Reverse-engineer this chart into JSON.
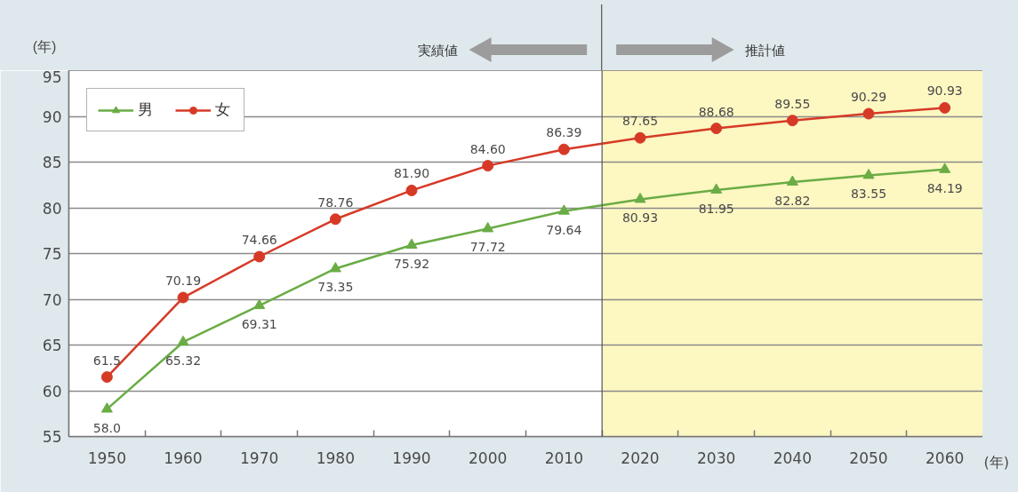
{
  "chart_data": {
    "type": "line",
    "xlabel": "(年)",
    "ylabel": "(年)",
    "x": [
      1950,
      1960,
      1970,
      1980,
      1990,
      2000,
      2010,
      2020,
      2030,
      2040,
      2050,
      2060
    ],
    "xlim": [
      1945,
      2065
    ],
    "xticks": [
      1950,
      {
        "value": 1955,
        "label": null
      },
      1960,
      {
        "value": 1965,
        "label": null
      },
      1970,
      {
        "value": 1975,
        "label": null
      },
      1980,
      {
        "value": 1985,
        "label": null
      },
      1990,
      {
        "value": 1995,
        "label": null
      },
      2000,
      {
        "value": 2005,
        "label": null
      },
      2010,
      {
        "value": 2015,
        "label": null
      },
      2020,
      {
        "value": 2025,
        "label": null
      },
      2030,
      {
        "value": 2035,
        "label": null
      },
      2040,
      {
        "value": 2045,
        "label": null
      },
      2050,
      {
        "value": 2055,
        "label": null
      },
      2060
    ],
    "ylim": [
      55,
      95
    ],
    "yticks": [
      55,
      60,
      65,
      70,
      75,
      80,
      85,
      90,
      95
    ],
    "grid": "y",
    "legend": "top left",
    "series": [
      {
        "name": "男",
        "color": "#6aac45",
        "marker": "triangle",
        "values": [
          58.0,
          65.32,
          69.31,
          73.35,
          75.92,
          77.72,
          79.64,
          80.93,
          81.95,
          82.82,
          83.55,
          84.19
        ],
        "value_labels": [
          "58.0",
          "65.32",
          "69.31",
          "73.35",
          "75.92",
          "77.72",
          "79.64",
          "80.93",
          "81.95",
          "82.82",
          "83.55",
          "84.19"
        ]
      },
      {
        "name": "女",
        "color": "#d63a26",
        "marker": "circle",
        "values": [
          61.5,
          70.19,
          74.66,
          78.76,
          81.9,
          84.6,
          86.39,
          87.65,
          88.68,
          89.55,
          90.29,
          90.93
        ],
        "value_labels": [
          "61.5",
          "70.19",
          "74.66",
          "78.76",
          "81.90",
          "84.60",
          "86.39",
          "87.65",
          "88.68",
          "89.55",
          "90.29",
          "90.93"
        ]
      }
    ],
    "ref_lines": [
      {
        "axis": "x",
        "value": 2015,
        "color": "#555555"
      }
    ],
    "bands": [
      {
        "axis": "x",
        "from": 1945,
        "to": 2015,
        "label": "実績値",
        "color": "#ffffff"
      },
      {
        "axis": "x",
        "from": 2015,
        "to": 2065,
        "label": "推計値",
        "color": "#fdf7c2"
      }
    ]
  }
}
